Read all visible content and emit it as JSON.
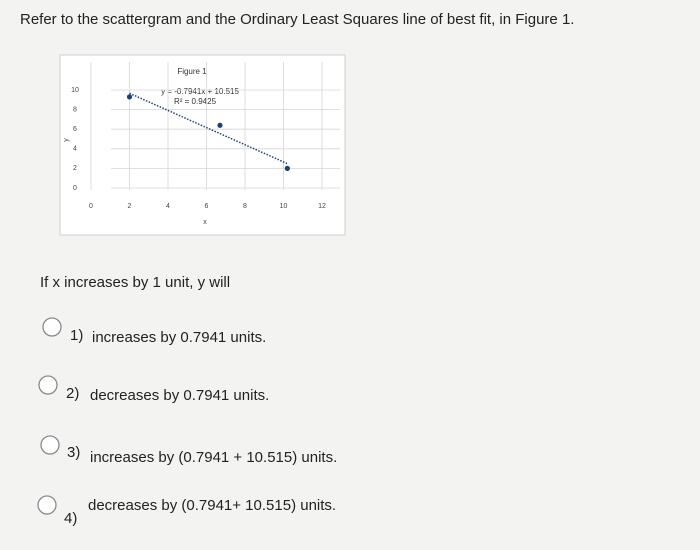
{
  "question": "Refer to the scattergram and the Ordinary Least Squares line of best fit, in Figure 1.",
  "chart_data": {
    "type": "scatter",
    "title": "Figure 1",
    "annotations": [
      "y = -0.7941x + 10.515",
      "R² = 0.9425"
    ],
    "x_label": "x",
    "y_label": "y",
    "x": [
      2,
      6.7,
      10.2
    ],
    "values": [
      9.3,
      6.4,
      2.0
    ],
    "color": "#1f3f7a",
    "xlim": [
      0,
      12
    ],
    "xticks": [
      0,
      2,
      4,
      6,
      8,
      10,
      12
    ],
    "ylim": [
      0,
      10
    ],
    "yticks": [
      0,
      2,
      4,
      6,
      8,
      10
    ],
    "grid": true
  },
  "prompt": "If x increases by 1 unit, y will",
  "options": [
    {
      "number": "1)",
      "text": "increases by 0.7941 units."
    },
    {
      "number": "2)",
      "text": "decreases by 0.7941 units."
    },
    {
      "number": "3)",
      "text": "increases by (0.7941 + 10.515) units."
    },
    {
      "number": "4)",
      "text": "decreases by (0.7941+ 10.515) units."
    }
  ]
}
